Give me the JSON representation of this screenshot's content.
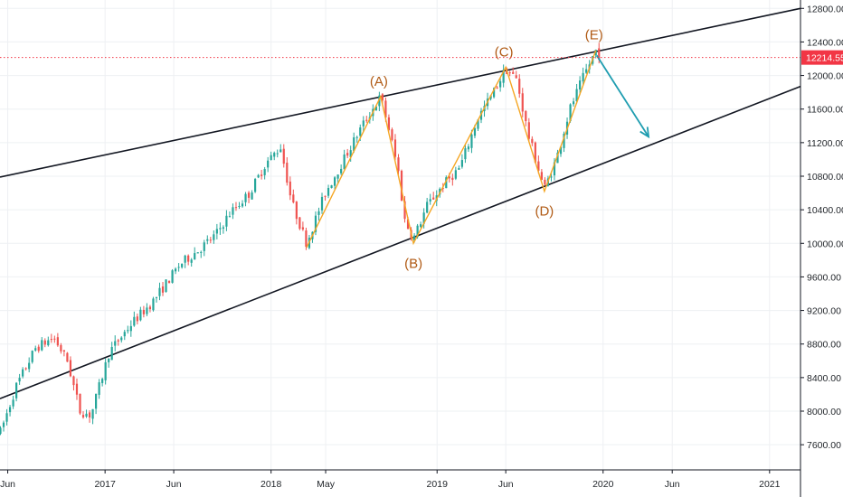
{
  "chart_data": {
    "type": "candlestick",
    "y_axis": {
      "range": [
        7300,
        12900
      ],
      "ticks": [
        7600,
        8000,
        8400,
        8800,
        9200,
        9600,
        10000,
        10400,
        10800,
        11200,
        11600,
        12000,
        12400,
        12800
      ],
      "tick_labels": [
        "7600.00",
        "8000.00",
        "8400.00",
        "8800.00",
        "9200.00",
        "9600.00",
        "10000.00",
        "10400.00",
        "10800.00",
        "11200.00",
        "11600.00",
        "12000.00",
        "12400.00",
        "12800.00"
      ],
      "position": "right"
    },
    "x_axis": {
      "range": [
        "2016-05-15",
        "2021-03-10"
      ],
      "ticks": [
        {
          "label": "Jun",
          "date": "2016-06-01"
        },
        {
          "label": "2017",
          "date": "2017-01-01"
        },
        {
          "label": "Jun",
          "date": "2017-06-01"
        },
        {
          "label": "2018",
          "date": "2018-01-01"
        },
        {
          "label": "May",
          "date": "2018-05-01"
        },
        {
          "label": "2019",
          "date": "2019-01-01"
        },
        {
          "label": "Jun",
          "date": "2019-06-01"
        },
        {
          "label": "2020",
          "date": "2020-01-01"
        },
        {
          "label": "Jun",
          "date": "2020-06-01"
        },
        {
          "label": "2021",
          "date": "2021-01-01"
        }
      ]
    },
    "grid": true,
    "current_price": {
      "value": 12214.55,
      "label": "12214.55",
      "color": "#f23645"
    },
    "colors": {
      "up": "#26a69a",
      "down": "#ef5350",
      "wave": "#f5a623",
      "trendline": "#131722",
      "projection": "#1f9db0",
      "wave_label": "#b05a14"
    },
    "price_path": [
      [
        "2016-05-16",
        7750
      ],
      [
        "2016-06-20",
        8300
      ],
      [
        "2016-08-01",
        8750
      ],
      [
        "2016-09-10",
        8880
      ],
      [
        "2016-10-10",
        8600
      ],
      [
        "2016-11-07",
        8000
      ],
      [
        "2016-12-01",
        7950
      ],
      [
        "2017-01-10",
        8700
      ],
      [
        "2017-03-01",
        9050
      ],
      [
        "2017-04-15",
        9300
      ],
      [
        "2017-06-15",
        9750
      ],
      [
        "2017-08-01",
        9950
      ],
      [
        "2017-09-01",
        10100
      ],
      [
        "2017-10-01",
        10350
      ],
      [
        "2017-11-15",
        10600
      ],
      [
        "2017-12-20",
        10950
      ],
      [
        "2018-01-22",
        11150
      ],
      [
        "2018-02-15",
        10500
      ],
      [
        "2018-03-20",
        10000
      ],
      [
        "2018-04-30",
        10600
      ],
      [
        "2018-06-10",
        11000
      ],
      [
        "2018-07-20",
        11400
      ],
      [
        "2018-08-30",
        11750
      ],
      [
        "2018-09-20",
        11300
      ],
      [
        "2018-10-10",
        10800
      ],
      [
        "2018-10-20",
        10300
      ],
      [
        "2018-11-10",
        10050
      ],
      [
        "2018-12-10",
        10450
      ],
      [
        "2019-01-15",
        10700
      ],
      [
        "2019-02-20",
        10900
      ],
      [
        "2019-04-01",
        11500
      ],
      [
        "2019-05-05",
        11800
      ],
      [
        "2019-06-01",
        12080
      ],
      [
        "2019-06-25",
        11950
      ],
      [
        "2019-07-20",
        11300
      ],
      [
        "2019-08-25",
        10650
      ],
      [
        "2019-09-20",
        11000
      ],
      [
        "2019-10-20",
        11600
      ],
      [
        "2019-11-20",
        12000
      ],
      [
        "2019-12-16",
        12300
      ],
      [
        "2019-12-28",
        12214.55
      ]
    ],
    "wave_points": [
      {
        "label": "(A)",
        "date": "2018-08-30",
        "value": 11750
      },
      {
        "label": "(B)",
        "date": "2018-11-10",
        "value": 10000
      },
      {
        "label": "(C)",
        "date": "2019-06-01",
        "value": 12100
      },
      {
        "label": "(D)",
        "date": "2019-08-25",
        "value": 10620
      },
      {
        "label": "(E)",
        "date": "2019-12-16",
        "value": 12300
      }
    ],
    "wave_path": [
      {
        "date": "2018-03-20",
        "value": 9950
      },
      {
        "date": "2018-08-30",
        "value": 11750
      },
      {
        "date": "2018-11-10",
        "value": 10000
      },
      {
        "date": "2019-06-01",
        "value": 12100
      },
      {
        "date": "2019-08-25",
        "value": 10620
      },
      {
        "date": "2019-12-16",
        "value": 12300
      }
    ],
    "trendlines": [
      {
        "name": "upper",
        "from": {
          "date": "2016-05-15",
          "value": 10790
        },
        "to": {
          "date": "2021-03-10",
          "value": 12800
        }
      },
      {
        "name": "lower",
        "from": {
          "date": "2016-05-15",
          "value": 8150
        },
        "to": {
          "date": "2021-03-10",
          "value": 11870
        }
      }
    ],
    "projection_arrow": {
      "from": {
        "date": "2019-12-18",
        "value": 12240
      },
      "to": {
        "date": "2020-04-10",
        "value": 11270
      }
    }
  }
}
